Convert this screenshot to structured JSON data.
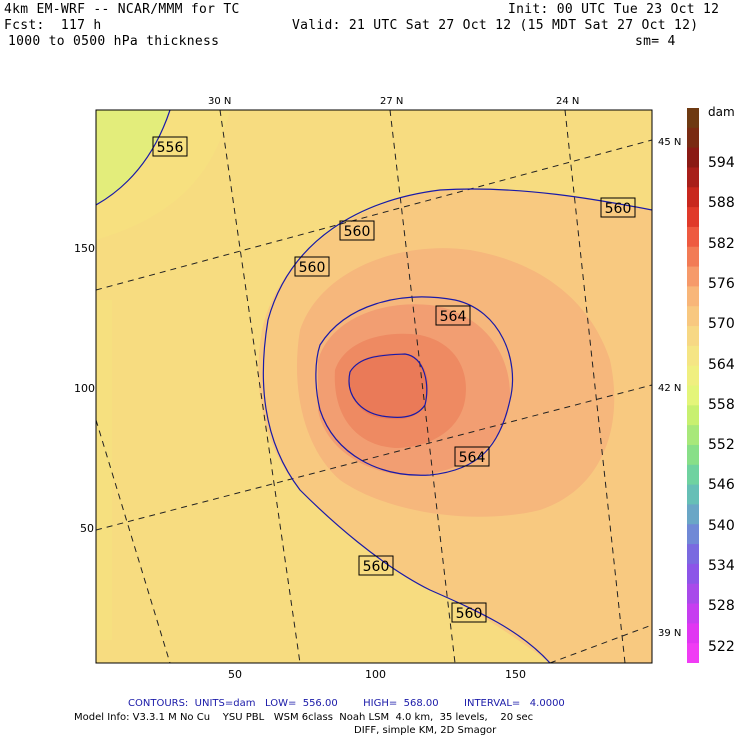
{
  "header": {
    "model_title": "4km EM-WRF -- NCAR/MMM for TC",
    "forecast": "Fcst:  117 h",
    "field": "1000 to 0500 hPa thickness",
    "init": "Init: 00 UTC Tue 23 Oct 12",
    "valid": "Valid: 21 UTC Sat 27 Oct 12 (15 MDT Sat 27 Oct 12)",
    "smoothing": "sm= 4"
  },
  "map": {
    "lat_labels_top": [
      "30 N",
      "27 N",
      "24 N"
    ],
    "lat_labels_right": [
      "45 N",
      "42 N",
      "39 N"
    ],
    "y_ticks": [
      "150",
      "100",
      "50"
    ],
    "x_ticks": [
      "50",
      "100",
      "150"
    ],
    "contour_labels": [
      "556",
      "560",
      "560",
      "560",
      "564",
      "564",
      "560",
      "560"
    ],
    "colors": {
      "level_552": "#f5ec7a",
      "level_556": "#f7e97f",
      "level_558": "#f7dc80",
      "level_560": "#f8c980",
      "level_564": "#f6b77c",
      "level_566": "#f29e72",
      "level_568": "#ee8a62",
      "level_570": "#ea7a58",
      "low_corner": "#d9f07a",
      "contour_line": "#1a1aa8"
    }
  },
  "colorbar": {
    "unit": "dam",
    "labels": [
      "594",
      "588",
      "582",
      "576",
      "570",
      "564",
      "558",
      "552",
      "546",
      "540",
      "534",
      "528",
      "522"
    ],
    "swatches": [
      "#6e3a12",
      "#7a2b12",
      "#8a1a14",
      "#a81f1a",
      "#c8281e",
      "#e03a2a",
      "#ee5a40",
      "#f27b55",
      "#f69a6a",
      "#f8b679",
      "#f8c880",
      "#f7d884",
      "#f5e584",
      "#f0ef80",
      "#e4f57a",
      "#c8f070",
      "#a8e87a",
      "#88df88",
      "#6fd2a0",
      "#66bfb6",
      "#6aa6c6",
      "#7089d6",
      "#7a6ae0",
      "#8c55e8",
      "#a84aea",
      "#c63ef0",
      "#e036f2",
      "#f03cf4"
    ]
  },
  "footer": {
    "contours": "CONTOURS:  UNITS=dam   LOW=  556.00        HIGH=  568.00        INTERVAL=   4.0000",
    "model_info": "Model Info: V3.3.1 M No Cu    YSU PBL   WSM 6class  Noah LSM  4.0 km,  35 levels,    20 sec",
    "diff": "DIFF, simple KM, 2D Smagor"
  }
}
